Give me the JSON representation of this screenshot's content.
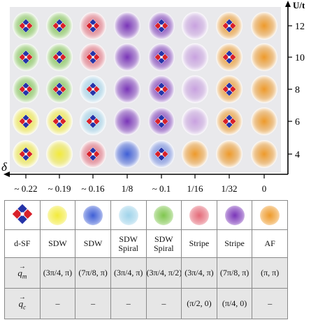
{
  "axes": {
    "y_label": "U/t",
    "x_label": "δ",
    "y_ticks": [
      "12",
      "10",
      "8",
      "6",
      "4"
    ],
    "x_ticks": [
      "~ 0.22",
      "~ 0.19",
      "~ 0.16",
      "1/8",
      "~ 0.1",
      "1/16",
      "1/32",
      "0"
    ]
  },
  "colors": {
    "dSF": "#2533a8",
    "dSF_red": "#d8202a",
    "SDW": "#f2ea3a",
    "SDW_blue": "#3f5fd6",
    "SDW_Spiral_cyan": "#9fd3ea",
    "SDW_Spiral_green": "#7fc64e",
    "Stripe_red": "#e46a78",
    "Stripe_purple": "#7a35b8",
    "AF": "#ee9a2a",
    "panel_bg": "#e9e9ec"
  },
  "grid": {
    "rows": [
      {
        "U": "12",
        "cells": [
          {
            "phase": "SDW Spiral green",
            "color": "#7fc64e",
            "dsf": true
          },
          {
            "phase": "SDW Spiral green",
            "color": "#7fc64e",
            "dsf": true
          },
          {
            "phase": "Stripe red",
            "color": "#e46a78",
            "dsf": true
          },
          {
            "phase": "Stripe purple",
            "color": "#7a35b8",
            "dsf": false
          },
          {
            "phase": "Stripe purple",
            "color": "#7a35b8",
            "dsf": true
          },
          {
            "phase": "Stripe purple light",
            "color": "#c9a2e0",
            "dsf": false
          },
          {
            "phase": "AF",
            "color": "#ee9a2a",
            "dsf": true
          },
          {
            "phase": "AF",
            "color": "#ee9a2a",
            "dsf": false
          }
        ]
      },
      {
        "U": "10",
        "cells": [
          {
            "phase": "SDW Spiral green",
            "color": "#7fc64e",
            "dsf": true
          },
          {
            "phase": "SDW Spiral green",
            "color": "#7fc64e",
            "dsf": true
          },
          {
            "phase": "Stripe red",
            "color": "#e46a78",
            "dsf": true
          },
          {
            "phase": "Stripe purple",
            "color": "#7a35b8",
            "dsf": false
          },
          {
            "phase": "Stripe purple",
            "color": "#7a35b8",
            "dsf": true
          },
          {
            "phase": "Stripe purple light",
            "color": "#c9a2e0",
            "dsf": false
          },
          {
            "phase": "AF",
            "color": "#ee9a2a",
            "dsf": true
          },
          {
            "phase": "AF",
            "color": "#ee9a2a",
            "dsf": false
          }
        ]
      },
      {
        "U": "8",
        "cells": [
          {
            "phase": "SDW Spiral green",
            "color": "#7fc64e",
            "dsf": true
          },
          {
            "phase": "SDW Spiral green",
            "color": "#7fc64e",
            "dsf": true
          },
          {
            "phase": "SDW Spiral cyan",
            "color": "#9fd3ea",
            "dsf": true
          },
          {
            "phase": "Stripe purple",
            "color": "#7a35b8",
            "dsf": false
          },
          {
            "phase": "Stripe purple",
            "color": "#7a35b8",
            "dsf": true
          },
          {
            "phase": "Stripe purple light",
            "color": "#c9a2e0",
            "dsf": false
          },
          {
            "phase": "AF",
            "color": "#ee9a2a",
            "dsf": true
          },
          {
            "phase": "AF",
            "color": "#ee9a2a",
            "dsf": false
          }
        ]
      },
      {
        "U": "6",
        "cells": [
          {
            "phase": "SDW",
            "color": "#f2ea3a",
            "dsf": true
          },
          {
            "phase": "SDW",
            "color": "#f2ea3a",
            "dsf": true
          },
          {
            "phase": "SDW Spiral cyan",
            "color": "#9fd3ea",
            "dsf": true
          },
          {
            "phase": "Stripe purple",
            "color": "#7a35b8",
            "dsf": false
          },
          {
            "phase": "Stripe purple",
            "color": "#7a35b8",
            "dsf": true
          },
          {
            "phase": "Stripe purple light",
            "color": "#c9a2e0",
            "dsf": false
          },
          {
            "phase": "AF",
            "color": "#ee9a2a",
            "dsf": true
          },
          {
            "phase": "AF",
            "color": "#ee9a2a",
            "dsf": false
          }
        ]
      },
      {
        "U": "4",
        "cells": [
          {
            "phase": "SDW",
            "color": "#f2ea3a",
            "dsf": true
          },
          {
            "phase": "SDW",
            "color": "#f2ea3a",
            "dsf": false
          },
          {
            "phase": "Stripe red",
            "color": "#e46a78",
            "dsf": true
          },
          {
            "phase": "SDW blue",
            "color": "#3f5fd6",
            "dsf": false
          },
          {
            "phase": "SDW blue",
            "color": "#6f88e0",
            "dsf": true
          },
          {
            "phase": "AF",
            "color": "#ee9a2a",
            "dsf": false
          },
          {
            "phase": "AF",
            "color": "#ee9a2a",
            "dsf": false
          },
          {
            "phase": "AF",
            "color": "#ee9a2a",
            "dsf": false
          }
        ]
      }
    ]
  },
  "legend": {
    "swatches": [
      {
        "type": "dsf",
        "color": "#2533a8"
      },
      {
        "type": "disc",
        "color": "#f2ea3a"
      },
      {
        "type": "disc",
        "color": "#3f5fd6"
      },
      {
        "type": "disc",
        "color": "#9fd3ea"
      },
      {
        "type": "disc",
        "color": "#7fc64e"
      },
      {
        "type": "disc",
        "color": "#e46a78"
      },
      {
        "type": "disc",
        "color": "#7a35b8"
      },
      {
        "type": "disc",
        "color": "#ee9a2a"
      }
    ],
    "labels": [
      "d-SF",
      "SDW",
      "SDW",
      "SDW Spiral",
      "SDW Spiral",
      "Stripe",
      "Stripe",
      "AF"
    ],
    "qm_label": "q",
    "qm_sub": "m",
    "qc_label": "q",
    "qc_sub": "c",
    "qm": [
      "",
      "(3π/4, π)",
      "(7π/8, π)",
      "(3π/4, π)",
      "(3π/4, π/2)",
      "(3π/4, π)",
      "(7π/8, π)",
      "(π, π)"
    ],
    "qc": [
      "–",
      "–",
      "–",
      "–",
      "(π/2, 0)",
      "(π/4, 0)",
      "–"
    ]
  }
}
